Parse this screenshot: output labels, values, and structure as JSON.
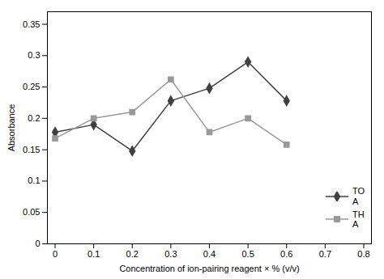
{
  "chart_data": {
    "type": "line",
    "x": [
      0,
      0.1,
      0.2,
      0.3,
      0.4,
      0.5,
      0.6
    ],
    "series": [
      {
        "name": "TO\nA",
        "color": "#404040",
        "marker": "diamond",
        "values": [
          0.178,
          0.19,
          0.148,
          0.228,
          0.248,
          0.29,
          0.228
        ]
      },
      {
        "name": "TH\nA",
        "color": "#999999",
        "marker": "square",
        "values": [
          0.168,
          0.2,
          0.21,
          0.262,
          0.178,
          0.2,
          0.158
        ]
      }
    ],
    "xlabel": "Concentration of ion-pairing reagent × % (v/v)",
    "ylabel": "Absorbance",
    "xlim": [
      -0.02,
      0.82
    ],
    "ylim": [
      0,
      0.37
    ],
    "xticks": [
      0,
      0.1,
      0.2,
      0.3,
      0.4,
      0.5,
      0.6,
      0.7,
      0.8
    ],
    "yticks": [
      0,
      0.05,
      0.1,
      0.15,
      0.2,
      0.25,
      0.3,
      0.35
    ],
    "grid": false,
    "legend": "lower right"
  }
}
